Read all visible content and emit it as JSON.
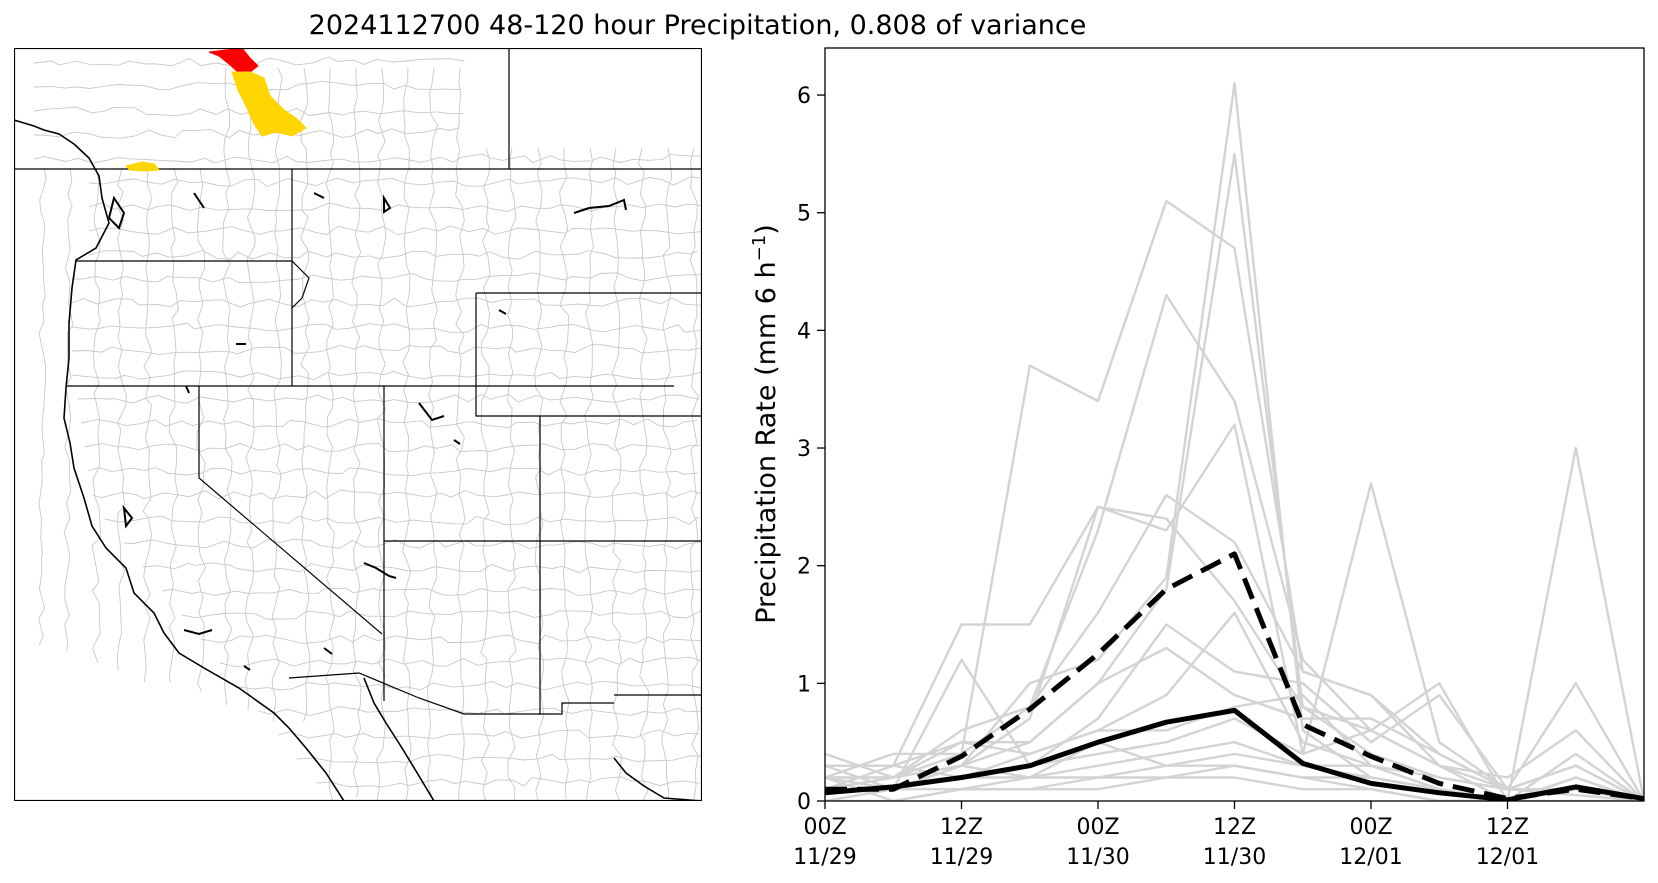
{
  "title": "2024112700 48-120 hour Precipitation, 0.808 of variance",
  "colors": {
    "background": "#ffffff",
    "basin_outline": "#c8c8c8",
    "border": "#000000",
    "highlight_red": "#ff0000",
    "highlight_yellow": "#ffd500",
    "member_line": "#d3d3d3",
    "mean_line": "#000000"
  },
  "map": {
    "type": "basin-map",
    "highlighted_basins": [
      "red",
      "yellow",
      "yellow"
    ]
  },
  "chart_data": {
    "type": "line",
    "ylabel": "Precipitation Rate (mm 6 h",
    "ylabel_sup": "−1",
    "ylabel_end": ")",
    "ylim": [
      0,
      6.4
    ],
    "yticks": [
      0,
      1,
      2,
      3,
      4,
      5,
      6
    ],
    "x": [
      0,
      6,
      12,
      18,
      24,
      30,
      36,
      42,
      48,
      54,
      60,
      66,
      72
    ],
    "xlim": [
      0,
      72
    ],
    "xticks": [
      {
        "x": 0,
        "line1": "00Z",
        "line2": "11/29"
      },
      {
        "x": 12,
        "line1": "12Z",
        "line2": "11/29"
      },
      {
        "x": 24,
        "line1": "00Z",
        "line2": "11/30"
      },
      {
        "x": 36,
        "line1": "12Z",
        "line2": "11/30"
      },
      {
        "x": 48,
        "line1": "00Z",
        "line2": "12/01"
      },
      {
        "x": 60,
        "line1": "12Z",
        "line2": "12/01"
      }
    ],
    "grid": false,
    "members": [
      [
        0.3,
        0.3,
        1.5,
        1.5,
        2.5,
        2.4,
        1.7,
        0.8,
        0.6,
        0.3,
        0.1,
        0.05,
        0.0
      ],
      [
        0.2,
        0.4,
        0.4,
        3.7,
        3.4,
        5.1,
        4.7,
        1.1,
        0.9,
        0.4,
        0.1,
        0.1,
        0.0
      ],
      [
        0.1,
        0.2,
        0.6,
        0.8,
        2.3,
        4.3,
        3.4,
        1.2,
        0.6,
        1.0,
        0.0,
        0.2,
        0.0
      ],
      [
        0.2,
        0.1,
        0.3,
        1.0,
        1.2,
        1.9,
        6.1,
        0.6,
        0.2,
        0.1,
        0.0,
        3.0,
        0.0
      ],
      [
        0.3,
        0.3,
        0.5,
        0.5,
        1.0,
        1.8,
        5.5,
        0.8,
        0.4,
        0.2,
        0.1,
        0.1,
        0.0
      ],
      [
        0.1,
        0.2,
        0.3,
        0.7,
        2.5,
        2.3,
        3.2,
        0.4,
        2.7,
        0.5,
        0.1,
        1.0,
        0.0
      ],
      [
        0.4,
        0.2,
        0.4,
        0.8,
        1.6,
        2.6,
        2.2,
        1.1,
        0.9,
        0.3,
        0.2,
        0.6,
        0.0
      ],
      [
        0.1,
        0.1,
        1.2,
        0.3,
        0.7,
        1.5,
        1.1,
        1.0,
        0.5,
        0.9,
        0.1,
        0.3,
        0.0
      ],
      [
        0.2,
        0.2,
        0.3,
        0.5,
        1.0,
        1.3,
        0.9,
        0.7,
        0.7,
        0.4,
        0.1,
        0.1,
        0.0
      ],
      [
        0.1,
        0.3,
        0.2,
        0.4,
        0.6,
        0.9,
        1.6,
        0.5,
        0.3,
        0.1,
        0.0,
        0.2,
        0.0
      ],
      [
        0.2,
        0.2,
        0.5,
        0.4,
        0.6,
        0.6,
        0.8,
        0.9,
        0.3,
        0.2,
        0.1,
        0.3,
        0.0
      ],
      [
        0.0,
        0.1,
        0.2,
        0.3,
        0.4,
        0.5,
        0.7,
        0.4,
        0.6,
        0.3,
        0.0,
        0.4,
        0.0
      ],
      [
        0.3,
        0.1,
        0.2,
        0.2,
        0.3,
        0.4,
        0.5,
        0.3,
        0.3,
        0.1,
        0.0,
        0.1,
        0.0
      ],
      [
        0.1,
        0.1,
        0.3,
        0.2,
        0.5,
        0.3,
        0.4,
        0.3,
        0.2,
        0.1,
        0.0,
        0.2,
        0.0
      ],
      [
        0.2,
        0.0,
        0.1,
        0.2,
        0.2,
        0.3,
        0.3,
        0.2,
        0.1,
        0.0,
        0.0,
        0.1,
        0.0
      ],
      [
        0.1,
        0.1,
        0.1,
        0.1,
        0.2,
        0.2,
        0.3,
        0.2,
        0.2,
        0.1,
        0.0,
        0.1,
        0.0
      ],
      [
        0.0,
        0.0,
        0.1,
        0.1,
        0.1,
        0.2,
        0.2,
        0.1,
        0.1,
        0.0,
        0.0,
        0.0,
        0.0
      ]
    ],
    "series": [
      {
        "style": "dashed",
        "values": [
          0.1,
          0.1,
          0.38,
          0.78,
          1.25,
          1.8,
          2.1,
          0.65,
          0.38,
          0.15,
          0.02,
          0.1,
          0.02
        ]
      },
      {
        "style": "solid",
        "values": [
          0.07,
          0.12,
          0.2,
          0.3,
          0.5,
          0.67,
          0.77,
          0.32,
          0.15,
          0.07,
          0.01,
          0.12,
          0.02
        ]
      }
    ]
  }
}
